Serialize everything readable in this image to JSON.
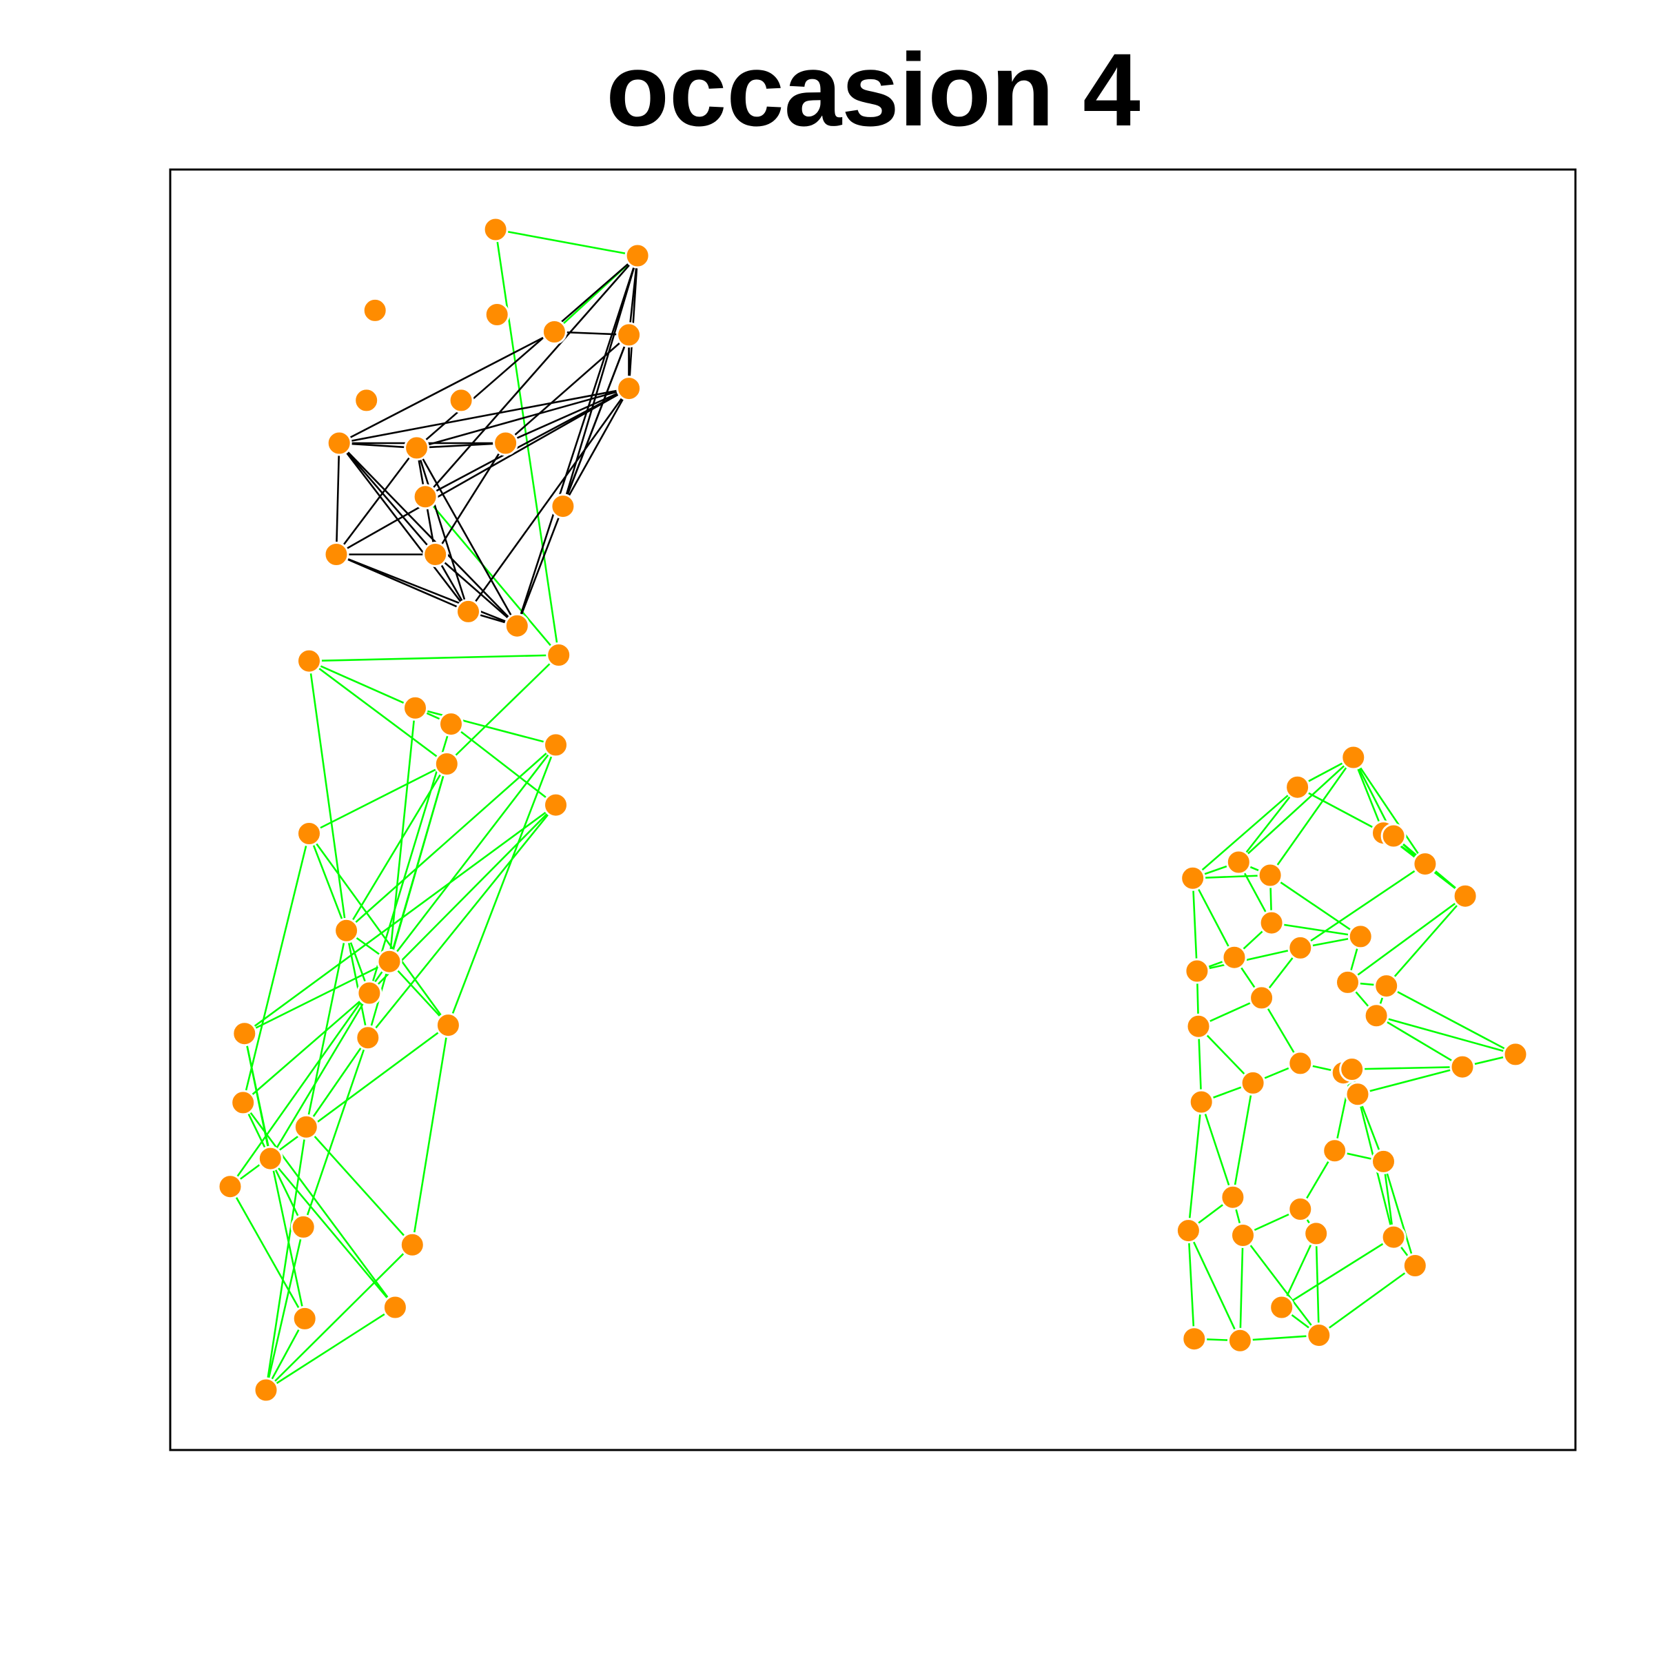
{
  "chart_data": {
    "type": "network",
    "title": "occasion 4",
    "colors": {
      "node_fill": "#ff8c00",
      "node_stroke": "#ffffff",
      "edge_within": "#000000",
      "edge_other": "#00ff00",
      "frame": "#000000",
      "background": "#ffffff"
    },
    "nodes": [
      {
        "id": 0,
        "x": 0.261,
        "y": 0.954
      },
      {
        "id": 1,
        "x": 0.36,
        "y": 0.91
      },
      {
        "id": 2,
        "x": 0.177,
        "y": 0.818
      },
      {
        "id": 3,
        "x": 0.262,
        "y": 0.811
      },
      {
        "id": 4,
        "x": 0.302,
        "y": 0.782
      },
      {
        "id": 5,
        "x": 0.354,
        "y": 0.777
      },
      {
        "id": 6,
        "x": 0.354,
        "y": 0.687
      },
      {
        "id": 7,
        "x": 0.171,
        "y": 0.667
      },
      {
        "id": 8,
        "x": 0.237,
        "y": 0.667
      },
      {
        "id": 9,
        "x": 0.268,
        "y": 0.595
      },
      {
        "id": 10,
        "x": 0.152,
        "y": 0.595
      },
      {
        "id": 11,
        "x": 0.206,
        "y": 0.587
      },
      {
        "id": 12,
        "x": 0.212,
        "y": 0.505
      },
      {
        "id": 13,
        "x": 0.308,
        "y": 0.489
      },
      {
        "id": 14,
        "x": 0.15,
        "y": 0.408
      },
      {
        "id": 15,
        "x": 0.219,
        "y": 0.408
      },
      {
        "id": 16,
        "x": 0.276,
        "y": 0.288
      },
      {
        "id": 17,
        "x": 0.242,
        "y": 0.312
      },
      {
        "id": 18,
        "x": 0.305,
        "y": 0.239
      },
      {
        "id": 19,
        "x": 0.131,
        "y": 0.229
      },
      {
        "id": 20,
        "x": 0.205,
        "y": 0.15
      },
      {
        "id": 21,
        "x": 0.23,
        "y": 0.123
      },
      {
        "id": 22,
        "x": 0.227,
        "y": 0.056
      },
      {
        "id": 23,
        "x": 0.303,
        "y": 0.088
      },
      {
        "id": 24,
        "x": 0.303,
        "y": -0.013
      },
      {
        "id": 25,
        "x": 0.131,
        "y": -0.061
      },
      {
        "id": 26,
        "x": 0.157,
        "y": -0.224
      },
      {
        "id": 27,
        "x": 0.187,
        "y": -0.276
      },
      {
        "id": 28,
        "x": 0.173,
        "y": -0.329
      },
      {
        "id": 29,
        "x": 0.172,
        "y": -0.404
      },
      {
        "id": 30,
        "x": 0.228,
        "y": -0.383
      },
      {
        "id": 31,
        "x": 0.086,
        "y": -0.397
      },
      {
        "id": 32,
        "x": 0.085,
        "y": -0.513
      },
      {
        "id": 33,
        "x": 0.129,
        "y": -0.554
      },
      {
        "id": 34,
        "x": 0.076,
        "y": -0.654
      },
      {
        "id": 35,
        "x": 0.104,
        "y": -0.607
      },
      {
        "id": 36,
        "x": 0.127,
        "y": -0.722
      },
      {
        "id": 37,
        "x": 0.203,
        "y": -0.752
      },
      {
        "id": 38,
        "x": 0.128,
        "y": -0.876
      },
      {
        "id": 39,
        "x": 0.191,
        "y": -0.857
      },
      {
        "id": 40,
        "x": 0.101,
        "y": -0.996
      },
      {
        "id": 41,
        "x": 0.859,
        "y": 0.067
      },
      {
        "id": 42,
        "x": 0.82,
        "y": 0.017
      },
      {
        "id": 43,
        "x": 0.88,
        "y": -0.06
      },
      {
        "id": 44,
        "x": 0.779,
        "y": -0.109
      },
      {
        "id": 45,
        "x": 0.887,
        "y": -0.065
      },
      {
        "id": 46,
        "x": 0.801,
        "y": -0.131
      },
      {
        "id": 47,
        "x": 0.909,
        "y": -0.112
      },
      {
        "id": 48,
        "x": 0.747,
        "y": -0.136
      },
      {
        "id": 49,
        "x": 0.937,
        "y": -0.166
      },
      {
        "id": 50,
        "x": 0.802,
        "y": -0.211
      },
      {
        "id": 51,
        "x": 0.864,
        "y": -0.234
      },
      {
        "id": 52,
        "x": 0.822,
        "y": -0.253
      },
      {
        "id": 53,
        "x": 0.776,
        "y": -0.269
      },
      {
        "id": 54,
        "x": 0.75,
        "y": -0.292
      },
      {
        "id": 55,
        "x": 0.855,
        "y": -0.311
      },
      {
        "id": 56,
        "x": 0.882,
        "y": -0.317
      },
      {
        "id": 57,
        "x": 0.795,
        "y": -0.337
      },
      {
        "id": 58,
        "x": 0.875,
        "y": -0.367
      },
      {
        "id": 59,
        "x": 0.751,
        "y": -0.385
      },
      {
        "id": 60,
        "x": 0.972,
        "y": -0.432
      },
      {
        "id": 61,
        "x": 0.822,
        "y": -0.447
      },
      {
        "id": 62,
        "x": 0.935,
        "y": -0.453
      },
      {
        "id": 63,
        "x": 0.852,
        "y": -0.463
      },
      {
        "id": 64,
        "x": 0.789,
        "y": -0.48
      },
      {
        "id": 65,
        "x": 0.858,
        "y": -0.457
      },
      {
        "id": 66,
        "x": 0.753,
        "y": -0.512
      },
      {
        "id": 67,
        "x": 0.862,
        "y": -0.499
      },
      {
        "id": 68,
        "x": 0.846,
        "y": -0.594
      },
      {
        "id": 69,
        "x": 0.88,
        "y": -0.612
      },
      {
        "id": 70,
        "x": 0.775,
        "y": -0.672
      },
      {
        "id": 71,
        "x": 0.822,
        "y": -0.692
      },
      {
        "id": 72,
        "x": 0.744,
        "y": -0.728
      },
      {
        "id": 73,
        "x": 0.782,
        "y": -0.736
      },
      {
        "id": 74,
        "x": 0.833,
        "y": -0.733
      },
      {
        "id": 75,
        "x": 0.887,
        "y": -0.739
      },
      {
        "id": 76,
        "x": 0.902,
        "y": -0.787
      },
      {
        "id": 77,
        "x": 0.748,
        "y": -0.91
      },
      {
        "id": 78,
        "x": 0.78,
        "y": -0.913
      },
      {
        "id": 79,
        "x": 0.835,
        "y": -0.904
      },
      {
        "id": 80,
        "x": 0.809,
        "y": -0.857
      }
    ],
    "edges_within": [
      [
        1,
        11
      ],
      [
        1,
        12
      ],
      [
        1,
        13
      ],
      [
        1,
        16
      ],
      [
        6,
        13
      ],
      [
        9,
        15
      ],
      [
        5,
        6
      ],
      [
        5,
        13
      ],
      [
        5,
        16
      ],
      [
        1,
        6
      ],
      [
        10,
        14
      ],
      [
        10,
        15
      ],
      [
        10,
        16
      ],
      [
        10,
        17
      ],
      [
        11,
        14
      ],
      [
        11,
        15
      ],
      [
        11,
        16
      ],
      [
        11,
        17
      ],
      [
        11,
        10
      ],
      [
        14,
        15
      ],
      [
        14,
        16
      ],
      [
        14,
        17
      ],
      [
        15,
        17
      ],
      [
        15,
        16
      ],
      [
        17,
        16
      ],
      [
        6,
        5
      ],
      [
        9,
        10
      ],
      [
        9,
        11
      ],
      [
        9,
        6
      ],
      [
        4,
        5
      ],
      [
        1,
        5
      ],
      [
        9,
        5
      ],
      [
        12,
        6
      ],
      [
        10,
        6
      ],
      [
        11,
        6
      ],
      [
        14,
        6
      ],
      [
        17,
        6
      ],
      [
        10,
        4
      ]
    ],
    "edges_other": [
      [
        0,
        18
      ],
      [
        18,
        19
      ],
      [
        1,
        4
      ],
      [
        12,
        18
      ],
      [
        0,
        1
      ],
      [
        19,
        20
      ],
      [
        19,
        22
      ],
      [
        20,
        23
      ],
      [
        20,
        21
      ],
      [
        21,
        24
      ],
      [
        22,
        25
      ],
      [
        22,
        26
      ],
      [
        22,
        27
      ],
      [
        23,
        26
      ],
      [
        23,
        27
      ],
      [
        24,
        28
      ],
      [
        24,
        29
      ],
      [
        25,
        26
      ],
      [
        25,
        30
      ],
      [
        26,
        27
      ],
      [
        26,
        28
      ],
      [
        26,
        29
      ],
      [
        27,
        30
      ],
      [
        27,
        31
      ],
      [
        28,
        32
      ],
      [
        29,
        33
      ],
      [
        30,
        34
      ],
      [
        31,
        35
      ],
      [
        32,
        36
      ],
      [
        33,
        37
      ],
      [
        34,
        38
      ],
      [
        35,
        39
      ],
      [
        36,
        40
      ],
      [
        37,
        40
      ],
      [
        38,
        40
      ],
      [
        39,
        40
      ],
      [
        18,
        22
      ],
      [
        19,
        26
      ],
      [
        20,
        27
      ],
      [
        21,
        28
      ],
      [
        22,
        29
      ],
      [
        23,
        30
      ],
      [
        24,
        31
      ],
      [
        25,
        32
      ],
      [
        26,
        33
      ],
      [
        27,
        34
      ],
      [
        28,
        35
      ],
      [
        29,
        36
      ],
      [
        30,
        37
      ],
      [
        31,
        38
      ],
      [
        32,
        39
      ],
      [
        33,
        40
      ],
      [
        41,
        42
      ],
      [
        41,
        43
      ],
      [
        41,
        44
      ],
      [
        41,
        45
      ],
      [
        41,
        46
      ],
      [
        41,
        47
      ],
      [
        42,
        43
      ],
      [
        42,
        44
      ],
      [
        42,
        48
      ],
      [
        43,
        45
      ],
      [
        43,
        47
      ],
      [
        43,
        49
      ],
      [
        44,
        46
      ],
      [
        44,
        48
      ],
      [
        44,
        50
      ],
      [
        45,
        47
      ],
      [
        45,
        49
      ],
      [
        46,
        48
      ],
      [
        46,
        50
      ],
      [
        46,
        51
      ],
      [
        47,
        49
      ],
      [
        47,
        52
      ],
      [
        48,
        53
      ],
      [
        48,
        54
      ],
      [
        49,
        55
      ],
      [
        49,
        56
      ],
      [
        50,
        51
      ],
      [
        50,
        53
      ],
      [
        51,
        52
      ],
      [
        51,
        55
      ],
      [
        52,
        54
      ],
      [
        52,
        57
      ],
      [
        53,
        54
      ],
      [
        53,
        57
      ],
      [
        54,
        59
      ],
      [
        55,
        56
      ],
      [
        55,
        58
      ],
      [
        56,
        58
      ],
      [
        56,
        60
      ],
      [
        57,
        59
      ],
      [
        57,
        61
      ],
      [
        58,
        60
      ],
      [
        58,
        62
      ],
      [
        59,
        64
      ],
      [
        59,
        66
      ],
      [
        60,
        62
      ],
      [
        61,
        63
      ],
      [
        61,
        64
      ],
      [
        62,
        65
      ],
      [
        62,
        67
      ],
      [
        63,
        65
      ],
      [
        63,
        67
      ],
      [
        64,
        66
      ],
      [
        64,
        70
      ],
      [
        65,
        67
      ],
      [
        65,
        68
      ],
      [
        66,
        70
      ],
      [
        66,
        72
      ],
      [
        67,
        69
      ],
      [
        67,
        75
      ],
      [
        68,
        69
      ],
      [
        68,
        71
      ],
      [
        69,
        75
      ],
      [
        69,
        76
      ],
      [
        70,
        72
      ],
      [
        70,
        73
      ],
      [
        71,
        73
      ],
      [
        71,
        74
      ],
      [
        72,
        77
      ],
      [
        72,
        78
      ],
      [
        73,
        78
      ],
      [
        73,
        79
      ],
      [
        74,
        79
      ],
      [
        74,
        80
      ],
      [
        75,
        76
      ],
      [
        75,
        80
      ],
      [
        76,
        79
      ],
      [
        77,
        78
      ],
      [
        78,
        79
      ],
      [
        79,
        80
      ]
    ]
  }
}
